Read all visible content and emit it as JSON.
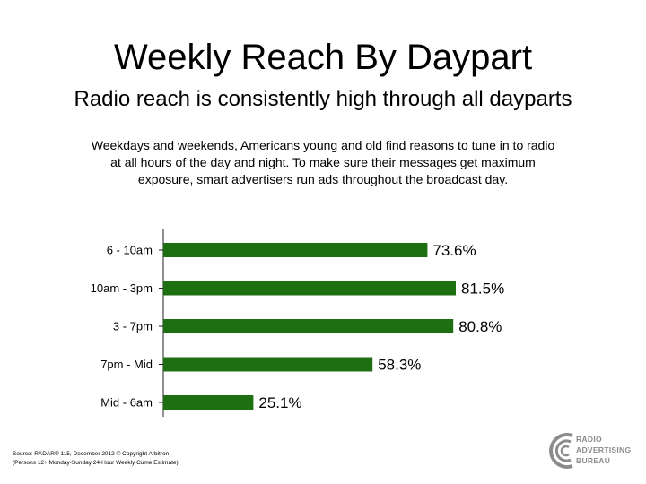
{
  "title": "Weekly Reach By Daypart",
  "subtitle": "Radio reach is consistently high through all dayparts",
  "description": "Weekdays and weekends, Americans young and old find reasons to tune in to radio at all hours of the day and night. To make sure their messages get maximum exposure, smart advertisers run ads  throughout the broadcast day.",
  "source_lines": [
    "Source: RADAR® 115, December 2012 © Copyright Arbitron",
    "(Persons 12+ Monday-Sunday 24-Hour Weekly Cume Estimate)"
  ],
  "logo": {
    "lines": [
      "RADIO",
      "ADVERTISING",
      "BUREAU"
    ],
    "icon": "rab-logo-icon"
  },
  "colors": {
    "bar": "#1e6e12",
    "logo_gray": "#8c8c8c"
  },
  "chart_data": {
    "type": "bar",
    "orientation": "horizontal",
    "categories": [
      "6 - 10am",
      "10am - 3pm",
      "3 - 7pm",
      "7pm - Mid",
      "Mid - 6am"
    ],
    "values": [
      73.6,
      81.5,
      80.8,
      58.3,
      25.1
    ],
    "value_labels": [
      "73.6%",
      "81.5%",
      "80.8%",
      "58.3%",
      "25.1%"
    ],
    "xlim": [
      0,
      100
    ],
    "grid": false,
    "legend": "none"
  }
}
